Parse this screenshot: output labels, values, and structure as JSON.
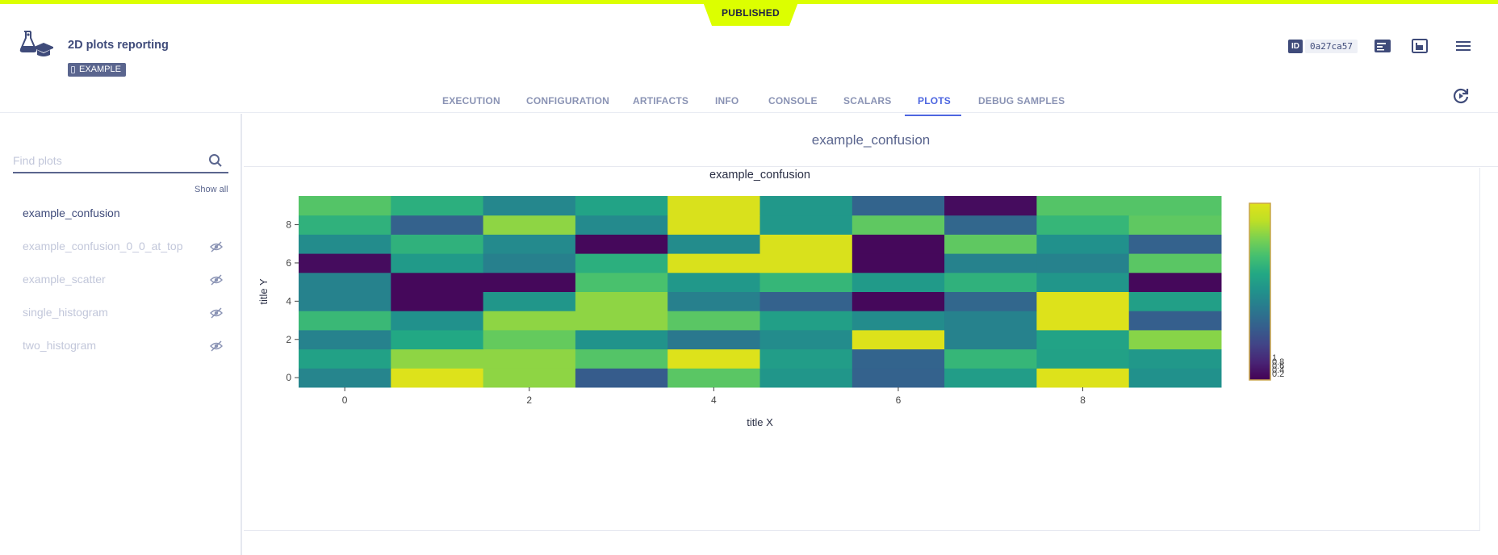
{
  "status_label": "PUBLISHED",
  "task": {
    "title": "2D plots reporting",
    "tag": "EXAMPLE",
    "id_key": "ID",
    "id_value": "0a27ca57"
  },
  "tabs": [
    {
      "label": "EXECUTION",
      "active": false
    },
    {
      "label": "CONFIGURATION",
      "active": false
    },
    {
      "label": "ARTIFACTS",
      "active": false
    },
    {
      "label": "INFO",
      "active": false
    },
    {
      "label": "CONSOLE",
      "active": false
    },
    {
      "label": "SCALARS",
      "active": false
    },
    {
      "label": "PLOTS",
      "active": true
    },
    {
      "label": "DEBUG SAMPLES",
      "active": false
    }
  ],
  "sidebar": {
    "search_placeholder": "Find plots",
    "show_all": "Show all",
    "items": [
      {
        "label": "example_confusion",
        "hidden": false
      },
      {
        "label": "example_confusion_0_0_at_top",
        "hidden": true
      },
      {
        "label": "example_scatter",
        "hidden": true
      },
      {
        "label": "single_histogram",
        "hidden": true
      },
      {
        "label": "two_histogram",
        "hidden": true
      }
    ]
  },
  "main": {
    "section_title": "example_confusion"
  },
  "icons": {
    "logo": "flask-graduation-cap-icon",
    "details": "details-panel-icon",
    "layout": "layout-toggle-icon",
    "menu": "hamburger-menu-icon",
    "refresh": "auto-refresh-icon",
    "search": "search-icon",
    "hidden": "eye-off-icon"
  },
  "colors": {
    "accent": "#4d66e0",
    "status": "#dcff00",
    "tag_bg": "#5a658e"
  },
  "chart_data": {
    "type": "heatmap",
    "title": "example_confusion",
    "xlabel": "title X",
    "ylabel": "title Y",
    "x_ticks": [
      0,
      2,
      4,
      6,
      8
    ],
    "y_ticks": [
      0,
      2,
      4,
      6,
      8
    ],
    "xlim": [
      -0.5,
      9.5
    ],
    "ylim": [
      -0.5,
      9.5
    ],
    "colorscale": "viridis",
    "colorbar_ticks": [
      "1",
      "0.8",
      "0.6",
      "0.4",
      "0.2"
    ],
    "z": [
      [
        0.45,
        0.99,
        0.83,
        0.29,
        0.74,
        0.52,
        0.31,
        0.55,
        0.99,
        0.5
      ],
      [
        0.57,
        0.83,
        0.83,
        0.73,
        0.99,
        0.55,
        0.32,
        0.66,
        0.57,
        0.53
      ],
      [
        0.44,
        0.6,
        0.76,
        0.51,
        0.4,
        0.48,
        0.99,
        0.44,
        0.58,
        0.82
      ],
      [
        0.67,
        0.5,
        0.83,
        0.83,
        0.74,
        0.56,
        0.48,
        0.44,
        0.99,
        0.3
      ],
      [
        0.44,
        0.02,
        0.52,
        0.83,
        0.43,
        0.31,
        0.02,
        0.33,
        0.99,
        0.56
      ],
      [
        0.44,
        0.02,
        0.02,
        0.71,
        0.53,
        0.66,
        0.54,
        0.64,
        0.52,
        0.02
      ],
      [
        0.03,
        0.54,
        0.43,
        0.63,
        0.98,
        0.98,
        0.02,
        0.44,
        0.44,
        0.74
      ],
      [
        0.48,
        0.64,
        0.47,
        0.02,
        0.48,
        0.98,
        0.02,
        0.75,
        0.5,
        0.31
      ],
      [
        0.64,
        0.31,
        0.83,
        0.47,
        0.98,
        0.53,
        0.75,
        0.33,
        0.66,
        0.75
      ],
      [
        0.73,
        0.63,
        0.46,
        0.58,
        0.98,
        0.53,
        0.32,
        0.03,
        0.73,
        0.73
      ]
    ]
  }
}
